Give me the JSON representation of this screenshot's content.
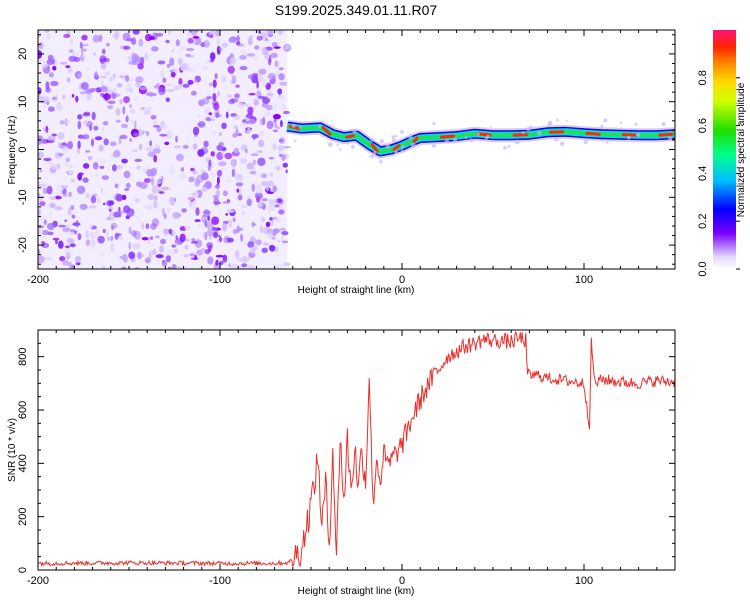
{
  "title": "S199.2025.349.01.11.R07",
  "chart_data": [
    {
      "type": "heatmap",
      "panel": "spectrogram",
      "xlabel": "Height of straight line (km)",
      "ylabel": "Frequency (Hz)",
      "xlim": [
        -200,
        150
      ],
      "ylim": [
        -25,
        25
      ],
      "x_ticks": [
        -200,
        -100,
        0,
        100
      ],
      "y_ticks": [
        -20,
        -10,
        0,
        10,
        20
      ],
      "noise_region_x": [
        -200,
        -63
      ],
      "signal_track": {
        "x": [
          -63,
          -55,
          -45,
          -38,
          -32,
          -25,
          -18,
          -12,
          -6,
          0,
          5,
          10,
          20,
          30,
          40,
          50,
          60,
          70,
          80,
          90,
          100,
          110,
          120,
          130,
          140,
          150
        ],
        "freq_hz": [
          4.8,
          4.4,
          4.6,
          3.2,
          2.6,
          2.9,
          1.0,
          -0.4,
          0.0,
          0.8,
          1.7,
          2.4,
          2.6,
          2.8,
          3.3,
          3.0,
          3.0,
          3.1,
          3.6,
          3.7,
          3.4,
          3.2,
          3.1,
          3.0,
          3.0,
          3.2
        ]
      },
      "colorbar": {
        "label": "Normalized spectral amplitude",
        "range": [
          0.0,
          1.0
        ],
        "ticks": [
          "0.0",
          "0.2",
          "0.4",
          "0.6",
          "0.8"
        ]
      }
    },
    {
      "type": "line",
      "panel": "snr",
      "xlabel": "Height of straight line (km)",
      "ylabel": "SNR (10 * v/v)",
      "xlim": [
        -200,
        150
      ],
      "ylim": [
        0,
        900
      ],
      "x_ticks": [
        -200,
        -100,
        0,
        100
      ],
      "y_ticks": [
        0,
        200,
        400,
        600,
        800
      ],
      "color": "#e8312c",
      "series": [
        {
          "name": "SNR",
          "x": [
            -200,
            -150,
            -100,
            -70,
            -62,
            -55,
            -50,
            -46,
            -44,
            -42,
            -40,
            -38,
            -36,
            -34,
            -32,
            -30,
            -28,
            -26,
            -24,
            -22,
            -20,
            -18,
            -16,
            -14,
            -12,
            -10,
            -8,
            -5,
            0,
            5,
            10,
            15,
            20,
            25,
            30,
            35,
            40,
            45,
            50,
            55,
            60,
            65,
            68,
            69,
            70,
            75,
            80,
            85,
            90,
            95,
            100,
            103,
            104,
            106,
            110,
            120,
            130,
            140,
            150
          ],
          "y": [
            25,
            27,
            25,
            25,
            28,
            80,
            250,
            420,
            150,
            330,
            90,
            460,
            30,
            520,
            250,
            490,
            300,
            460,
            310,
            460,
            320,
            740,
            240,
            420,
            330,
            440,
            390,
            420,
            470,
            560,
            640,
            700,
            750,
            800,
            820,
            840,
            850,
            865,
            860,
            860,
            855,
            870,
            860,
            720,
            730,
            730,
            720,
            715,
            710,
            705,
            700,
            545,
            850,
            700,
            715,
            705,
            700,
            710,
            705
          ]
        }
      ]
    }
  ]
}
